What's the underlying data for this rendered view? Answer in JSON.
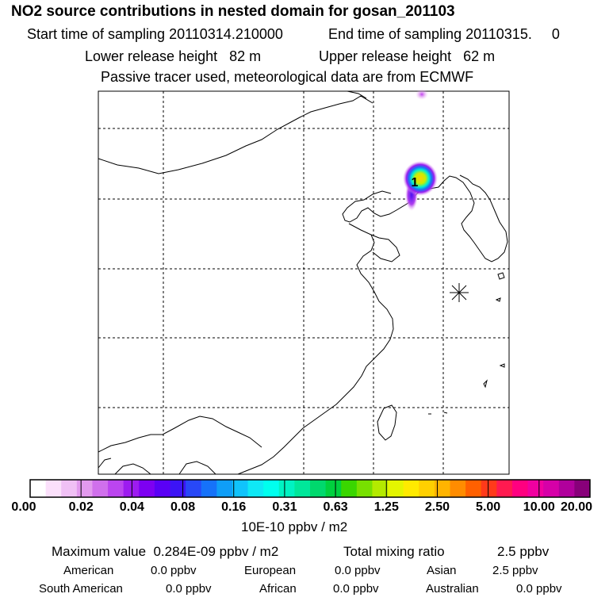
{
  "header": {
    "title": "NO2 source contributions in nested domain for gosan_201103",
    "start_label": "Start time of sampling 20110314.210000",
    "end_label": "End time of sampling 20110315.     0",
    "lower_label": "Lower release height   82 m",
    "upper_label": "Upper release height   62 m",
    "tracer_label": "Passive tracer used, meteorological data are from ECMWF"
  },
  "map": {
    "source_marker": "1",
    "receptor_icon": "star-icon"
  },
  "colorbar": {
    "colors": [
      "#ffffff",
      "#fbe0fb",
      "#f0c0f5",
      "#e29aee",
      "#d070ec",
      "#bb45ef",
      "#9d1cf0",
      "#7d00f2",
      "#5a00f5",
      "#3c14f5",
      "#2848f7",
      "#1672f9",
      "#0f9ef8",
      "#10c3fb",
      "#0fe8f5",
      "#00ffee",
      "#00f2c2",
      "#00e79a",
      "#00d86d",
      "#00d03e",
      "#3ad600",
      "#78e000",
      "#b4ea00",
      "#e4f500",
      "#ffea00",
      "#ffd000",
      "#ffb400",
      "#ff8c00",
      "#ff6000",
      "#ff3a1a",
      "#ff1a50",
      "#ff0080",
      "#f000a0",
      "#d600a8",
      "#b0009c",
      "#88007a"
    ],
    "ticks": [
      "0.00",
      "0.02",
      "0.04",
      "0.08",
      "0.16",
      "0.31",
      "0.63",
      "1.25",
      "2.50",
      "5.00",
      "10.00",
      "20.00"
    ],
    "unit": "10E-10 ppbv / m2"
  },
  "summary": {
    "max_label": "Maximum value  0.284E-09 ppbv / m2",
    "total_label": "Total mixing ratio",
    "total_value": "2.5 ppbv",
    "rows": [
      [
        {
          "label": "American",
          "value": "0.0 ppbv"
        },
        {
          "label": "European",
          "value": "0.0 ppbv"
        },
        {
          "label": "Asian",
          "value": "2.5 ppbv"
        }
      ],
      [
        {
          "label": "South American",
          "value": "0.0 ppbv"
        },
        {
          "label": "African",
          "value": "0.0 ppbv"
        },
        {
          "label": "Australian",
          "value": "0.0 ppbv"
        }
      ]
    ]
  }
}
